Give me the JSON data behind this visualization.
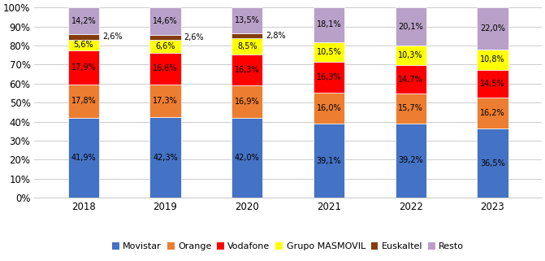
{
  "years": [
    "2018",
    "2019",
    "2020",
    "2021",
    "2022",
    "2023"
  ],
  "series": {
    "Movistar": [
      41.9,
      42.3,
      42.0,
      39.1,
      39.2,
      36.5
    ],
    "Orange": [
      17.8,
      17.3,
      16.9,
      16.0,
      15.7,
      16.2
    ],
    "Vodafone": [
      17.9,
      16.6,
      16.3,
      16.3,
      14.7,
      14.5
    ],
    "Grupo MASMOVIL": [
      5.6,
      6.6,
      8.5,
      10.5,
      10.3,
      10.8
    ],
    "Euskaltel": [
      2.6,
      2.6,
      2.8,
      0.0,
      0.0,
      0.0
    ],
    "Resto": [
      14.2,
      14.6,
      13.5,
      18.1,
      20.1,
      22.0
    ]
  },
  "colors": {
    "Movistar": "#4472C4",
    "Orange": "#ED7D31",
    "Vodafone": "#FF0000",
    "Grupo MASMOVIL": "#FFFF00",
    "Euskaltel": "#843C0C",
    "Resto": "#B8A0C8"
  },
  "labels_inside": {
    "Movistar": [
      true,
      true,
      true,
      true,
      true,
      true
    ],
    "Orange": [
      true,
      true,
      true,
      true,
      true,
      true
    ],
    "Vodafone": [
      true,
      true,
      true,
      true,
      true,
      true
    ],
    "Grupo MASMOVIL": [
      true,
      true,
      true,
      true,
      true,
      true
    ],
    "Euskaltel": [
      false,
      false,
      false,
      false,
      false,
      false
    ],
    "Resto": [
      true,
      true,
      true,
      true,
      true,
      true
    ]
  },
  "labels_outside": {
    "Euskaltel": [
      true,
      true,
      true,
      false,
      false,
      false
    ]
  },
  "label_values": {
    "Movistar": [
      41.9,
      42.3,
      42.0,
      39.1,
      39.2,
      36.5
    ],
    "Orange": [
      17.8,
      17.3,
      16.9,
      16.0,
      15.7,
      16.2
    ],
    "Vodafone": [
      17.9,
      16.6,
      16.3,
      16.3,
      14.7,
      14.5
    ],
    "Grupo MASMOVIL": [
      5.6,
      6.6,
      8.5,
      10.5,
      10.3,
      10.8
    ],
    "Euskaltel": [
      2.6,
      2.6,
      2.8,
      null,
      null,
      null
    ],
    "Resto": [
      14.2,
      14.6,
      13.5,
      18.1,
      20.1,
      22.0
    ]
  },
  "ylim": [
    0,
    100
  ],
  "yticks": [
    0,
    10,
    20,
    30,
    40,
    50,
    60,
    70,
    80,
    90,
    100
  ],
  "ytick_labels": [
    "0%",
    "10%",
    "20%",
    "30%",
    "40%",
    "50%",
    "60%",
    "70%",
    "80%",
    "90%",
    "100%"
  ],
  "legend_order": [
    "Movistar",
    "Orange",
    "Vodafone",
    "Grupo MASMOVIL",
    "Euskaltel",
    "Resto"
  ],
  "bar_width": 0.38,
  "fontsize_bar": 7,
  "fontsize_axis": 8.5,
  "fontsize_legend": 8,
  "background_color": "#FFFFFF",
  "grid_color": "#CCCCCC"
}
